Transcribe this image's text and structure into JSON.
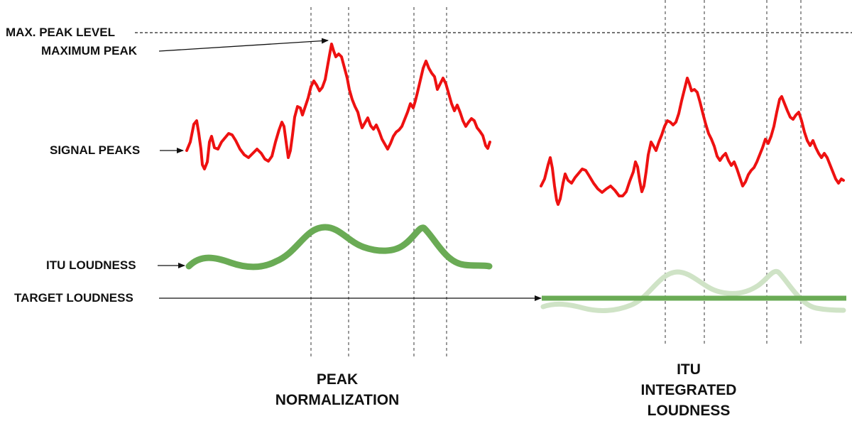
{
  "labels": {
    "max_peak_level": "MAX. PEAK LEVEL",
    "maximum_peak": "MAXIMUM PEAK",
    "signal_peaks": "SIGNAL PEAKS",
    "itu_loudness": "ITU LOUDNESS",
    "target_loudness": "TARGET LOUDNESS"
  },
  "captions": {
    "left": [
      "PEAK",
      "NORMALIZATION"
    ],
    "right": [
      "ITU",
      "INTEGRATED",
      "LOUDNESS"
    ]
  },
  "colors": {
    "signal_peaks": "#ee1111",
    "itu_loudness": "#6aab55",
    "itu_loudness_faded": "#cfe3c6",
    "target_loudness": "#6aab55",
    "guide_lines": "#9a9a9a",
    "text": "#111111"
  }
}
